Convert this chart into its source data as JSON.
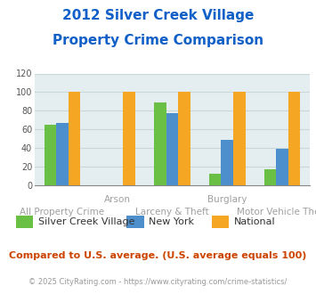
{
  "title_line1": "2012 Silver Creek Village",
  "title_line2": "Property Crime Comparison",
  "categories": [
    "All Property Crime",
    "Arson",
    "Larceny & Theft",
    "Burglary",
    "Motor Vehicle Theft"
  ],
  "series": {
    "Silver Creek Village": [
      65,
      null,
      89,
      12,
      17
    ],
    "New York": [
      67,
      null,
      77,
      49,
      39
    ],
    "National": [
      100,
      100,
      100,
      100,
      100
    ]
  },
  "colors": {
    "Silver Creek Village": "#6abf45",
    "New York": "#4d8fcc",
    "National": "#f5a623"
  },
  "ylim": [
    0,
    120
  ],
  "yticks": [
    0,
    20,
    40,
    60,
    80,
    100,
    120
  ],
  "grid_color": "#c8d8d8",
  "bg_color": "#e4eef0",
  "title_color": "#1060c8",
  "xlabel_color_row1": "#a0a0a0",
  "xlabel_color_row2": "#a0a0a0",
  "legend_labels": [
    "Silver Creek Village",
    "New York",
    "National"
  ],
  "footnote1": "Compared to U.S. average. (U.S. average equals 100)",
  "footnote2": "© 2025 CityRating.com - https://www.cityrating.com/crime-statistics/",
  "footnote1_color": "#cc4400",
  "footnote2_color": "#999999",
  "row1_labels": [
    "",
    "Arson",
    "",
    "Burglary",
    ""
  ],
  "row2_labels": [
    "All Property Crime",
    "",
    "Larceny & Theft",
    "",
    "Motor Vehicle Theft"
  ]
}
